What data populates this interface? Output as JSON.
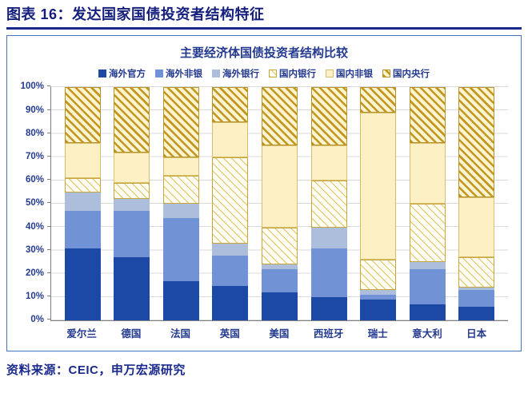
{
  "header": {
    "title": "图表 16：发达国家国债投资者结构特征"
  },
  "footer": {
    "source": "资料来源：CEIC，申万宏源研究"
  },
  "colors": {
    "header_navy": "#1A2A8C",
    "figure_border_blue": "#4472C4",
    "axis_text_navy": "#233A8F",
    "gridline_gray": "#D9D9D9",
    "gold_hatch": "#C3961E"
  },
  "chart_data": {
    "type": "bar",
    "subtype": "stacked-100-percent",
    "title": "主要经济体国债投资者结构比较",
    "categories": [
      "爱尔兰",
      "德国",
      "法国",
      "英国",
      "美国",
      "西班牙",
      "瑞士",
      "意大利",
      "日本"
    ],
    "series": [
      {
        "name": "海外官方",
        "style": "solid-navy",
        "color": "#1C48A6",
        "values": [
          31,
          27,
          17,
          15,
          12,
          10,
          9,
          7,
          6
        ]
      },
      {
        "name": "海外非银",
        "style": "solid-cornflower",
        "color": "#7292D6",
        "values": [
          16,
          20,
          27,
          13,
          10,
          21,
          2,
          15,
          7
        ]
      },
      {
        "name": "海外银行",
        "style": "solid-lightsteel",
        "color": "#ACBEDC",
        "values": [
          8,
          5,
          6,
          5,
          2,
          9,
          2,
          3,
          1
        ]
      },
      {
        "name": "国内银行",
        "style": "hatch-light",
        "color": "#C9A63C",
        "values": [
          6,
          7,
          12,
          37,
          16,
          20,
          13,
          25,
          13
        ]
      },
      {
        "name": "国内非银",
        "style": "solid-paleyellow",
        "color": "#FCF0C4",
        "values": [
          15,
          13,
          8,
          15,
          35,
          15,
          63,
          26,
          26
        ]
      },
      {
        "name": "国内央行",
        "style": "hatch-gold",
        "color": "#C3961E",
        "values": [
          24,
          28,
          30,
          15,
          25,
          25,
          11,
          24,
          47
        ]
      }
    ],
    "y_ticks": [
      "0%",
      "10%",
      "20%",
      "30%",
      "40%",
      "50%",
      "60%",
      "70%",
      "80%",
      "90%",
      "100%"
    ],
    "ylim": [
      0,
      100
    ],
    "xlabel": "",
    "ylabel": "",
    "legend_position": "top",
    "grid": true
  }
}
